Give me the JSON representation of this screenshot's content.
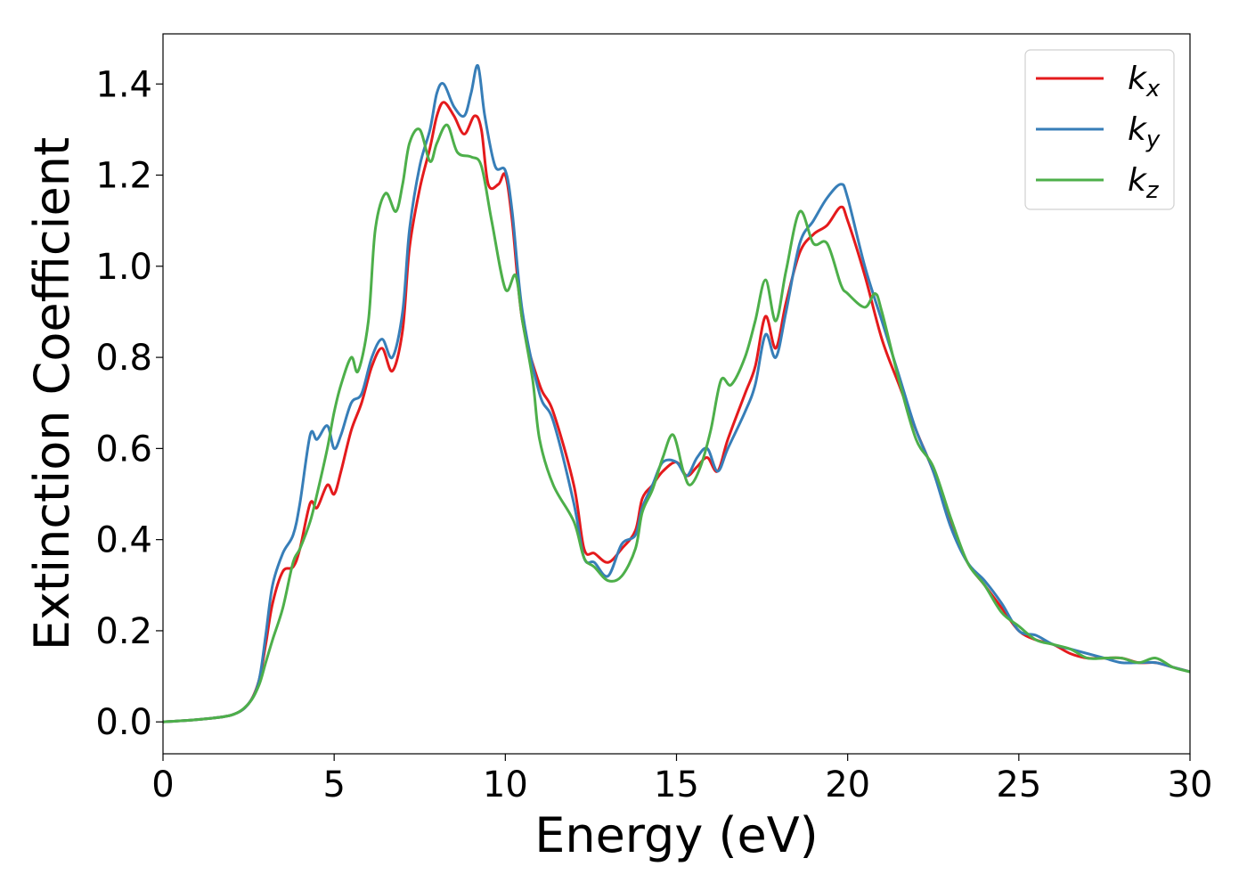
{
  "chart_data": {
    "type": "line",
    "xlabel": "Energy (eV)",
    "ylabel": "Extinction Coefficient",
    "xlim": [
      0,
      30
    ],
    "ylim": [
      -0.07,
      1.51
    ],
    "xticks": [
      0,
      5,
      10,
      15,
      20,
      25,
      30
    ],
    "yticks": [
      0.0,
      0.2,
      0.4,
      0.6,
      0.8,
      1.0,
      1.2,
      1.4
    ],
    "xtick_labels": [
      "0",
      "5",
      "10",
      "15",
      "20",
      "25",
      "30"
    ],
    "ytick_labels": [
      "0.0",
      "0.2",
      "0.4",
      "0.6",
      "0.8",
      "1.0",
      "1.2",
      "1.4"
    ],
    "grid": false,
    "legend_position": "top-right",
    "series": [
      {
        "name": "kx",
        "label_main": "k",
        "label_sub": "x",
        "color": "#e41a1c",
        "points": [
          [
            0,
            0.0
          ],
          [
            1,
            0.005
          ],
          [
            2,
            0.015
          ],
          [
            2.5,
            0.04
          ],
          [
            2.8,
            0.09
          ],
          [
            3.0,
            0.17
          ],
          [
            3.2,
            0.26
          ],
          [
            3.5,
            0.33
          ],
          [
            3.8,
            0.34
          ],
          [
            4.0,
            0.38
          ],
          [
            4.3,
            0.48
          ],
          [
            4.5,
            0.47
          ],
          [
            4.8,
            0.52
          ],
          [
            5.0,
            0.5
          ],
          [
            5.2,
            0.55
          ],
          [
            5.5,
            0.64
          ],
          [
            5.8,
            0.7
          ],
          [
            6.1,
            0.78
          ],
          [
            6.4,
            0.82
          ],
          [
            6.7,
            0.77
          ],
          [
            7.0,
            0.86
          ],
          [
            7.2,
            1.04
          ],
          [
            7.5,
            1.17
          ],
          [
            7.8,
            1.26
          ],
          [
            8.0,
            1.33
          ],
          [
            8.2,
            1.36
          ],
          [
            8.5,
            1.33
          ],
          [
            8.8,
            1.29
          ],
          [
            9.1,
            1.33
          ],
          [
            9.3,
            1.3
          ],
          [
            9.5,
            1.18
          ],
          [
            9.8,
            1.18
          ],
          [
            10.0,
            1.2
          ],
          [
            10.2,
            1.1
          ],
          [
            10.5,
            0.88
          ],
          [
            11.0,
            0.74
          ],
          [
            11.4,
            0.68
          ],
          [
            12.0,
            0.52
          ],
          [
            12.3,
            0.38
          ],
          [
            12.6,
            0.37
          ],
          [
            13.0,
            0.35
          ],
          [
            13.4,
            0.38
          ],
          [
            13.8,
            0.42
          ],
          [
            14.0,
            0.49
          ],
          [
            14.3,
            0.52
          ],
          [
            14.6,
            0.55
          ],
          [
            15.0,
            0.57
          ],
          [
            15.3,
            0.54
          ],
          [
            15.6,
            0.56
          ],
          [
            15.9,
            0.58
          ],
          [
            16.2,
            0.55
          ],
          [
            16.5,
            0.62
          ],
          [
            17.0,
            0.72
          ],
          [
            17.3,
            0.78
          ],
          [
            17.6,
            0.89
          ],
          [
            17.9,
            0.82
          ],
          [
            18.2,
            0.92
          ],
          [
            18.6,
            1.03
          ],
          [
            19.0,
            1.07
          ],
          [
            19.4,
            1.09
          ],
          [
            19.8,
            1.13
          ],
          [
            20.0,
            1.1
          ],
          [
            20.5,
            0.98
          ],
          [
            21.0,
            0.84
          ],
          [
            21.5,
            0.74
          ],
          [
            22.0,
            0.64
          ],
          [
            22.5,
            0.55
          ],
          [
            23.0,
            0.44
          ],
          [
            23.5,
            0.35
          ],
          [
            24.0,
            0.3
          ],
          [
            24.5,
            0.25
          ],
          [
            25.0,
            0.2
          ],
          [
            25.5,
            0.18
          ],
          [
            26.0,
            0.17
          ],
          [
            26.5,
            0.15
          ],
          [
            27.0,
            0.14
          ],
          [
            27.5,
            0.14
          ],
          [
            28.0,
            0.14
          ],
          [
            28.5,
            0.13
          ],
          [
            29.0,
            0.13
          ],
          [
            29.5,
            0.12
          ],
          [
            30.0,
            0.11
          ]
        ]
      },
      {
        "name": "ky",
        "label_main": "k",
        "label_sub": "y",
        "color": "#377eb8",
        "points": [
          [
            0,
            0.0
          ],
          [
            1,
            0.005
          ],
          [
            2,
            0.015
          ],
          [
            2.5,
            0.04
          ],
          [
            2.8,
            0.09
          ],
          [
            3.0,
            0.19
          ],
          [
            3.2,
            0.3
          ],
          [
            3.5,
            0.37
          ],
          [
            3.8,
            0.41
          ],
          [
            4.0,
            0.48
          ],
          [
            4.3,
            0.63
          ],
          [
            4.5,
            0.62
          ],
          [
            4.8,
            0.65
          ],
          [
            5.0,
            0.6
          ],
          [
            5.2,
            0.63
          ],
          [
            5.5,
            0.7
          ],
          [
            5.8,
            0.72
          ],
          [
            6.1,
            0.8
          ],
          [
            6.4,
            0.84
          ],
          [
            6.7,
            0.8
          ],
          [
            7.0,
            0.9
          ],
          [
            7.2,
            1.08
          ],
          [
            7.5,
            1.22
          ],
          [
            7.8,
            1.3
          ],
          [
            8.0,
            1.38
          ],
          [
            8.2,
            1.4
          ],
          [
            8.5,
            1.35
          ],
          [
            8.8,
            1.33
          ],
          [
            9.0,
            1.38
          ],
          [
            9.2,
            1.44
          ],
          [
            9.4,
            1.33
          ],
          [
            9.7,
            1.22
          ],
          [
            10.0,
            1.21
          ],
          [
            10.2,
            1.12
          ],
          [
            10.5,
            0.9
          ],
          [
            11.0,
            0.72
          ],
          [
            11.4,
            0.66
          ],
          [
            12.0,
            0.48
          ],
          [
            12.3,
            0.36
          ],
          [
            12.6,
            0.35
          ],
          [
            13.0,
            0.32
          ],
          [
            13.4,
            0.39
          ],
          [
            13.8,
            0.41
          ],
          [
            14.0,
            0.47
          ],
          [
            14.3,
            0.52
          ],
          [
            14.6,
            0.57
          ],
          [
            15.0,
            0.57
          ],
          [
            15.3,
            0.54
          ],
          [
            15.6,
            0.58
          ],
          [
            15.9,
            0.6
          ],
          [
            16.2,
            0.55
          ],
          [
            16.5,
            0.6
          ],
          [
            17.0,
            0.68
          ],
          [
            17.3,
            0.74
          ],
          [
            17.6,
            0.85
          ],
          [
            17.9,
            0.8
          ],
          [
            18.2,
            0.9
          ],
          [
            18.6,
            1.05
          ],
          [
            19.0,
            1.1
          ],
          [
            19.4,
            1.15
          ],
          [
            19.8,
            1.18
          ],
          [
            20.0,
            1.15
          ],
          [
            20.5,
            1.0
          ],
          [
            21.0,
            0.88
          ],
          [
            21.5,
            0.76
          ],
          [
            22.0,
            0.64
          ],
          [
            22.5,
            0.55
          ],
          [
            23.0,
            0.43
          ],
          [
            23.5,
            0.35
          ],
          [
            24.0,
            0.31
          ],
          [
            24.5,
            0.26
          ],
          [
            25.0,
            0.2
          ],
          [
            25.5,
            0.19
          ],
          [
            26.0,
            0.17
          ],
          [
            26.5,
            0.16
          ],
          [
            27.0,
            0.15
          ],
          [
            27.5,
            0.14
          ],
          [
            28.0,
            0.13
          ],
          [
            28.5,
            0.13
          ],
          [
            29.0,
            0.13
          ],
          [
            29.5,
            0.12
          ],
          [
            30.0,
            0.11
          ]
        ]
      },
      {
        "name": "kz",
        "label_main": "k",
        "label_sub": "z",
        "color": "#4daf4a",
        "points": [
          [
            0,
            0.0
          ],
          [
            1,
            0.005
          ],
          [
            2,
            0.015
          ],
          [
            2.5,
            0.04
          ],
          [
            2.8,
            0.08
          ],
          [
            3.0,
            0.13
          ],
          [
            3.2,
            0.18
          ],
          [
            3.5,
            0.25
          ],
          [
            3.8,
            0.35
          ],
          [
            4.0,
            0.38
          ],
          [
            4.3,
            0.44
          ],
          [
            4.5,
            0.5
          ],
          [
            4.8,
            0.6
          ],
          [
            5.0,
            0.68
          ],
          [
            5.2,
            0.74
          ],
          [
            5.5,
            0.8
          ],
          [
            5.7,
            0.77
          ],
          [
            6.0,
            0.88
          ],
          [
            6.2,
            1.08
          ],
          [
            6.5,
            1.16
          ],
          [
            6.8,
            1.12
          ],
          [
            7.0,
            1.18
          ],
          [
            7.2,
            1.27
          ],
          [
            7.5,
            1.3
          ],
          [
            7.8,
            1.23
          ],
          [
            8.0,
            1.27
          ],
          [
            8.3,
            1.31
          ],
          [
            8.6,
            1.25
          ],
          [
            9.0,
            1.24
          ],
          [
            9.3,
            1.22
          ],
          [
            9.6,
            1.1
          ],
          [
            10.0,
            0.95
          ],
          [
            10.3,
            0.98
          ],
          [
            10.5,
            0.88
          ],
          [
            10.8,
            0.75
          ],
          [
            11.0,
            0.62
          ],
          [
            11.4,
            0.52
          ],
          [
            12.0,
            0.44
          ],
          [
            12.3,
            0.36
          ],
          [
            12.6,
            0.34
          ],
          [
            13.0,
            0.31
          ],
          [
            13.4,
            0.32
          ],
          [
            13.8,
            0.38
          ],
          [
            14.0,
            0.46
          ],
          [
            14.3,
            0.51
          ],
          [
            14.6,
            0.58
          ],
          [
            14.9,
            0.63
          ],
          [
            15.2,
            0.55
          ],
          [
            15.4,
            0.52
          ],
          [
            15.7,
            0.56
          ],
          [
            16.0,
            0.64
          ],
          [
            16.3,
            0.75
          ],
          [
            16.6,
            0.74
          ],
          [
            17.0,
            0.8
          ],
          [
            17.3,
            0.88
          ],
          [
            17.6,
            0.97
          ],
          [
            17.9,
            0.88
          ],
          [
            18.2,
            0.99
          ],
          [
            18.6,
            1.12
          ],
          [
            19.0,
            1.05
          ],
          [
            19.4,
            1.05
          ],
          [
            19.8,
            0.96
          ],
          [
            20.0,
            0.94
          ],
          [
            20.5,
            0.91
          ],
          [
            20.8,
            0.94
          ],
          [
            21.0,
            0.9
          ],
          [
            21.5,
            0.75
          ],
          [
            22.0,
            0.62
          ],
          [
            22.5,
            0.56
          ],
          [
            23.0,
            0.45
          ],
          [
            23.5,
            0.35
          ],
          [
            24.0,
            0.3
          ],
          [
            24.5,
            0.24
          ],
          [
            25.0,
            0.21
          ],
          [
            25.5,
            0.18
          ],
          [
            26.0,
            0.17
          ],
          [
            26.5,
            0.16
          ],
          [
            27.0,
            0.14
          ],
          [
            27.5,
            0.14
          ],
          [
            28.0,
            0.14
          ],
          [
            28.5,
            0.13
          ],
          [
            29.0,
            0.14
          ],
          [
            29.5,
            0.12
          ],
          [
            30.0,
            0.11
          ]
        ]
      }
    ]
  }
}
